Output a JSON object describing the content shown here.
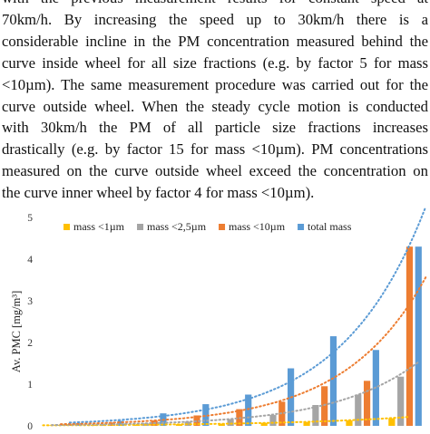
{
  "paragraph": {
    "lines": [
      "with the previous measurement results for constant speed at",
      "70km/h. By increasing the speed up to 30km/h there is a",
      "considerable incline in the PM concentration measured behind the",
      "curve inside wheel for all size fractions (e.g. by factor 5 for mass",
      "<10µm). The same measurement procedure was carried out for the",
      "curve outside wheel. When the steady cycle motion is conducted",
      "with 30km/h the PM of all particle size fractions increases",
      "drastically (e.g. by factor 15 for mass <10µm). PM concentrations",
      "measured on the curve outside wheel exceed the concentration on",
      "the curve inner wheel by factor 4 for mass <10µm)."
    ]
  },
  "chart_data": {
    "type": "bar",
    "ylabel": "Av. PMC [mg/m³]",
    "ylim": [
      0,
      5
    ],
    "yticks": [
      "0",
      "1",
      "2",
      "3",
      "4",
      "5"
    ],
    "grid": false,
    "legend_position": "top",
    "trendlines": "dotted exponential, one per series",
    "series": [
      {
        "name": "mass <1µm",
        "color": "#FFC000",
        "values": [
          0.01,
          0.02,
          0.03,
          0.04,
          0.05,
          0.07,
          0.09,
          0.13,
          0.18
        ]
      },
      {
        "name": "mass <2,5µm",
        "color": "#A5A5A5",
        "values": [
          0.02,
          0.04,
          0.06,
          0.1,
          0.16,
          0.26,
          0.5,
          0.75,
          1.18
        ]
      },
      {
        "name": "mass <10µm",
        "color": "#ED7D31",
        "values": [
          0.04,
          0.08,
          0.13,
          0.25,
          0.4,
          0.58,
          0.95,
          1.08,
          4.3
        ]
      },
      {
        "name": "total mass",
        "color": "#5B9BD5",
        "values": [
          0.06,
          0.12,
          0.3,
          0.52,
          0.75,
          1.38,
          2.15,
          1.82,
          4.3
        ]
      }
    ]
  }
}
